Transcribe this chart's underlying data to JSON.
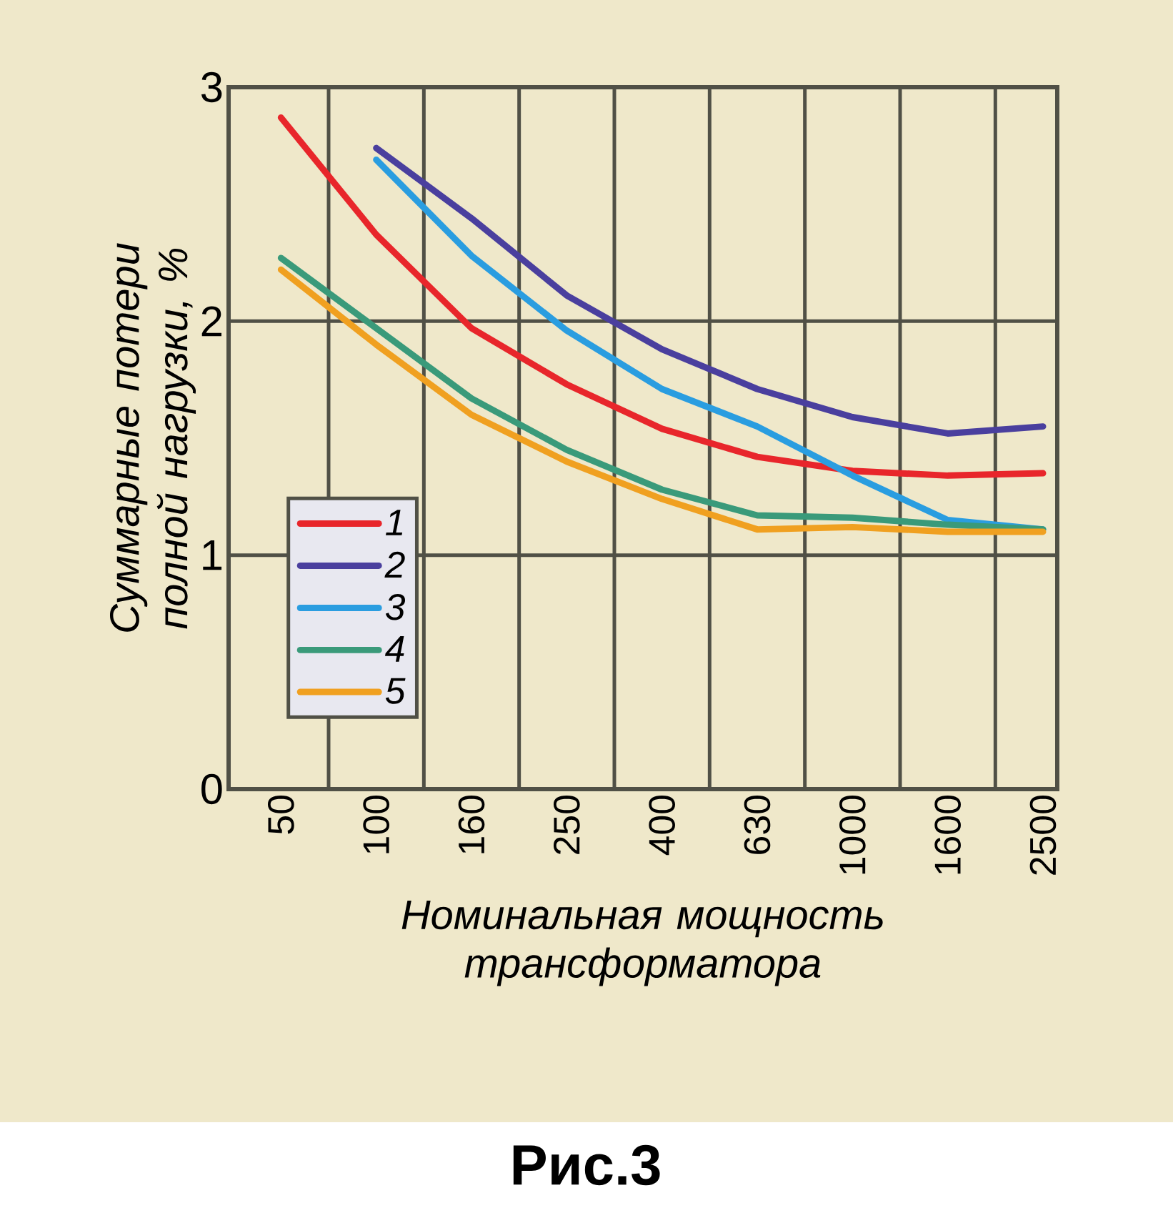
{
  "chart_data": {
    "type": "line",
    "xlabel": "Номинальная мощность трансформатора",
    "ylabel": "Суммарные потери полной нагрузки, %",
    "categories": [
      "50",
      "100",
      "160",
      "250",
      "400",
      "630",
      "1000",
      "1600",
      "2500"
    ],
    "series": [
      {
        "name": "1",
        "color": "#e8262b",
        "values": [
          2.87,
          2.37,
          1.97,
          1.73,
          1.54,
          1.42,
          1.36,
          1.34,
          1.35
        ]
      },
      {
        "name": "2",
        "color": "#4a3f9e",
        "values": [
          null,
          2.74,
          2.44,
          2.11,
          1.88,
          1.71,
          1.59,
          1.52,
          1.55
        ]
      },
      {
        "name": "3",
        "color": "#2a9de0",
        "values": [
          null,
          2.69,
          2.28,
          1.96,
          1.71,
          1.55,
          1.34,
          1.15,
          1.11
        ]
      },
      {
        "name": "4",
        "color": "#3a9a7a",
        "values": [
          2.27,
          1.97,
          1.67,
          1.45,
          1.28,
          1.17,
          1.16,
          1.13,
          1.11
        ]
      },
      {
        "name": "5",
        "color": "#f0a020",
        "values": [
          2.22,
          1.9,
          1.6,
          1.4,
          1.24,
          1.11,
          1.12,
          1.1,
          1.1
        ]
      }
    ],
    "ylim": [
      0,
      3
    ],
    "yticks": [
      0,
      1,
      2,
      3
    ],
    "grid": true,
    "legend": "bottom left",
    "line_style": "solid",
    "marker": "none",
    "annotations": [
      "Рис.3"
    ]
  }
}
